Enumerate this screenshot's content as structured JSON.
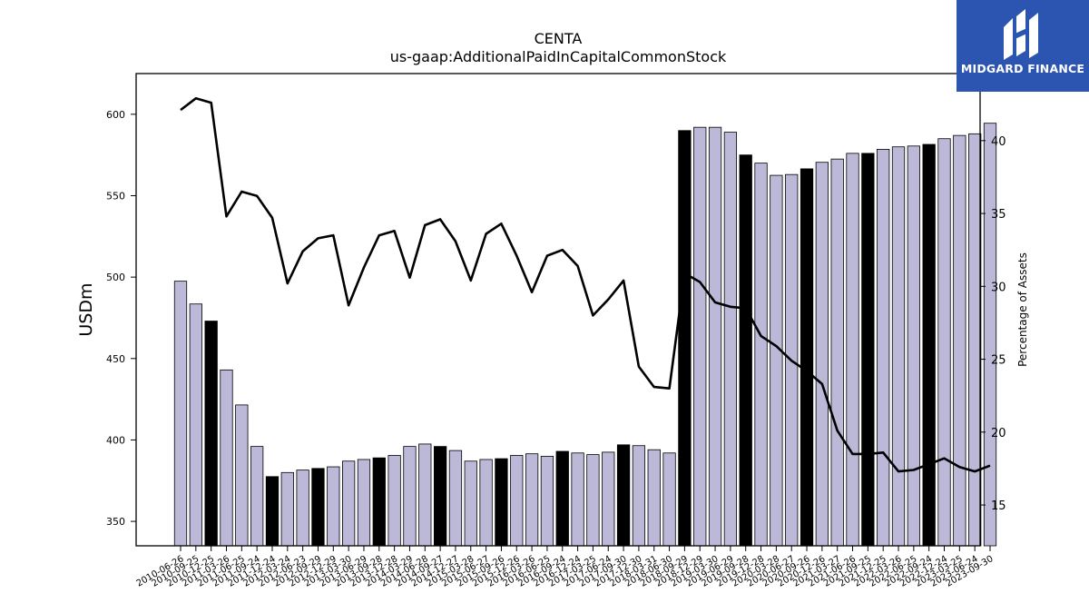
{
  "brand": {
    "name": "MIDGARD FINANCE",
    "box_color": "#2b55b1",
    "icon": "midgard-logo-icon"
  },
  "chart_data": {
    "type": "bar",
    "title": "CENTA",
    "subtitle": "us-gaap:AdditionalPaidInCapitalCommonStock",
    "ylabel": "USDm",
    "y2label": "Percentage of Assets",
    "ylim": [
      335,
      625
    ],
    "y2lim": [
      12.2,
      44.6
    ],
    "yticks": [
      350,
      400,
      450,
      500,
      550,
      600
    ],
    "y2ticks": [
      15,
      20,
      25,
      30,
      35,
      40
    ],
    "bar_color": "#bcb9d8",
    "highlight_color": "#000000",
    "line_color": "#000000",
    "categories": [
      "2010-06-26",
      "2010-09-25",
      "2010-12-25",
      "2011-03-26",
      "2011-06-25",
      "2011-09-24",
      "2011-12-24",
      "2012-03-24",
      "2012-06-23",
      "2012-09-29",
      "2012-12-29",
      "2013-03-30",
      "2013-06-29",
      "2013-09-28",
      "2013-12-28",
      "2014-03-29",
      "2014-06-28",
      "2014-09-27",
      "2014-12-27",
      "2015-03-28",
      "2015-06-27",
      "2015-09-26",
      "2015-12-26",
      "2016-03-26",
      "2016-06-25",
      "2016-09-24",
      "2016-12-24",
      "2017-03-25",
      "2017-06-24",
      "2017-09-30",
      "2017-12-30",
      "2018-03-31",
      "2018-06-30",
      "2018-09-29",
      "2018-12-29",
      "2019-03-30",
      "2019-06-29",
      "2019-09-28",
      "2019-12-28",
      "2020-03-28",
      "2020-06-27",
      "2020-09-26",
      "2020-12-26",
      "2021-03-27",
      "2021-06-26",
      "2021-09-25",
      "2021-12-25",
      "2022-03-26",
      "2022-06-25",
      "2022-09-24",
      "2022-12-24",
      "2023-03-25",
      "2023-06-24",
      "2023-09-30"
    ],
    "xtick_labels": [
      "2010-06-26",
      "2010-09-25",
      "2010-12-25",
      "2011-03-26",
      "2011-06-25",
      "2011-09-24",
      "2011-12-24",
      "2012-03-24",
      "2012-06-23",
      "2012-09-29",
      "2012-12-29",
      "2013-03-30",
      "2013-06-29",
      "2013-09-28",
      "2013-12-28",
      "2014-03-29",
      "2014-06-28",
      "2014-09-27",
      "2014-12-27",
      "2015-03-28",
      "2015-06-27",
      "2015-09-26",
      "2015-12-26",
      "2016-03-26",
      "2016-06-25",
      "2016-09-24",
      "2016-12-24",
      "2017-03-25",
      "2017-06-24",
      "2017-09-30",
      "2017-12-30",
      "2018-03-31",
      "2018-06-30",
      "2018-09-29",
      "2018-12-29",
      "2019-03-30",
      "2019-06-29",
      "2019-09-28",
      "2019-12-28",
      "2020-03-28",
      "2020-06-27",
      "2020-09-26",
      "2020-12-26",
      "2021-03-27",
      "2021-06-26",
      "2021-09-25",
      "2021-12-25",
      "2022-03-26",
      "2022-06-25",
      "2022-09-24",
      "2022-12-24",
      "2023-03-25",
      "2023-06-24",
      "2023-09-30"
    ],
    "series": [
      {
        "name": "USDm",
        "kind": "bar",
        "values": [
          497.5,
          483.5,
          473,
          443,
          421.5,
          396,
          377.5,
          380,
          381.5,
          382.5,
          383.5,
          387,
          388,
          389,
          390.5,
          396,
          397.5,
          396,
          393.5,
          387,
          388,
          388.5,
          390.5,
          391.5,
          390,
          393,
          392,
          391,
          392.5,
          397,
          396.5,
          394,
          392,
          590,
          592,
          592,
          589,
          575,
          570,
          562.5,
          563,
          566.5,
          570.5,
          572.5,
          576,
          576,
          578.5,
          580,
          580.5,
          581.5,
          585,
          587,
          588,
          594.5
        ],
        "highlight": [
          false,
          false,
          true,
          false,
          false,
          false,
          true,
          false,
          false,
          true,
          false,
          false,
          false,
          true,
          false,
          false,
          false,
          true,
          false,
          false,
          false,
          true,
          false,
          false,
          false,
          true,
          false,
          false,
          false,
          true,
          false,
          false,
          false,
          true,
          false,
          false,
          false,
          true,
          false,
          false,
          false,
          true,
          false,
          false,
          false,
          true,
          false,
          false,
          false,
          true,
          false,
          false,
          false,
          false
        ]
      },
      {
        "name": "Percentage of Assets",
        "kind": "line",
        "axis": "right",
        "values": [
          42.1,
          42.9,
          42.6,
          34.8,
          36.5,
          36.2,
          34.7,
          30.2,
          32.4,
          33.3,
          33.5,
          28.7,
          31.3,
          33.5,
          33.8,
          30.6,
          34.2,
          34.6,
          33.1,
          30.4,
          33.6,
          34.3,
          32.1,
          29.6,
          32.1,
          32.5,
          31.4,
          28.0,
          29.1,
          30.4,
          24.5,
          23.1,
          23.0,
          30.9,
          30.3,
          28.9,
          28.6,
          28.5,
          26.6,
          25.9,
          24.9,
          24.2,
          23.3,
          20.1,
          18.5,
          18.5,
          18.6,
          17.3,
          17.4,
          17.8,
          18.2,
          17.6,
          17.3,
          17.7
        ]
      }
    ]
  }
}
